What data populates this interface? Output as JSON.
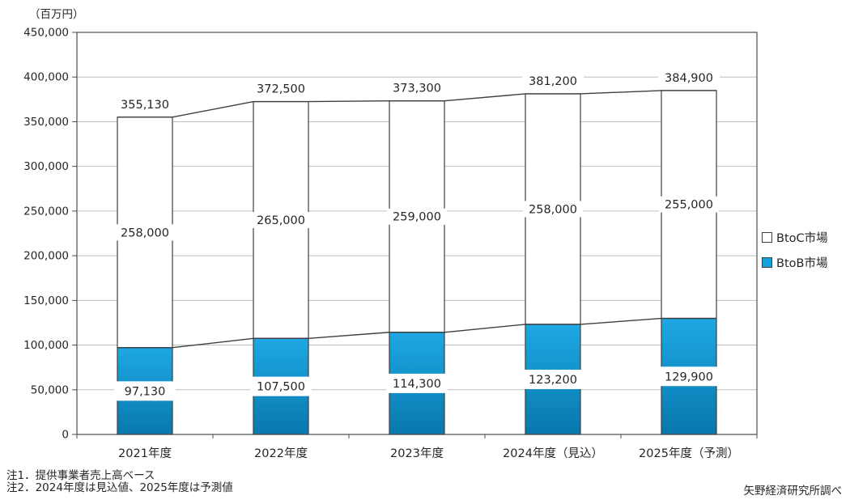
{
  "unit_label": "（百万円）",
  "notes": [
    "注1．提供事業者売上高ベース",
    "注2．2024年度は見込値、2025年度は予測値"
  ],
  "source": "矢野経済研究所調べ",
  "colors": {
    "bar_gradient_top": "#1ea8e3",
    "bar_gradient_bottom": "#0878ae",
    "btoc_fill": "#ffffff",
    "btob_legend": "#16a0dc",
    "bar_border": "#3f3f3f",
    "line": "#3f3f3f",
    "grid": "#bfbfbf",
    "plot_border": "#4d4d4d",
    "text": "#262626"
  },
  "chart_data": {
    "type": "bar",
    "subtype": "stacked-columns-with-boundary-lines",
    "title": "",
    "ylabel": "（百万円）",
    "xlabel": "",
    "categories": [
      "2021年度",
      "2022年度",
      "2023年度",
      "2024年度（見込）",
      "2025年度（予測）"
    ],
    "series": [
      {
        "name": "BtoB市場",
        "values": [
          97130,
          107500,
          114300,
          123200,
          129900
        ]
      },
      {
        "name": "BtoC市場",
        "values": [
          258000,
          265000,
          259000,
          258000,
          255000
        ]
      }
    ],
    "totals": [
      355130,
      372500,
      373300,
      381200,
      384900
    ],
    "ylim": [
      0,
      450000
    ],
    "ytick_step": 50000,
    "grid": true,
    "legend_position": "right",
    "legend": [
      {
        "label": "BtoC市場",
        "swatch": "btoc"
      },
      {
        "label": "BtoB市場",
        "swatch": "btob"
      }
    ]
  }
}
